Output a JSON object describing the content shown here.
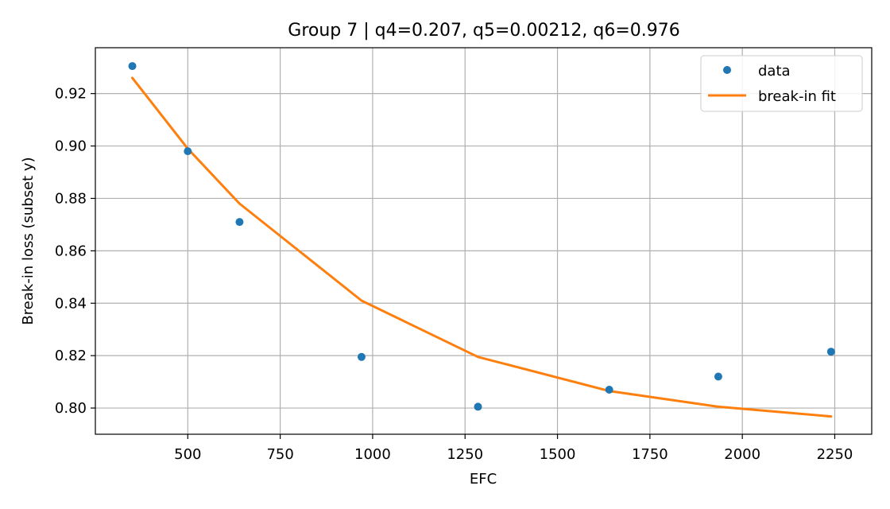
{
  "chart_data": {
    "type": "line",
    "title": "Group 7 | q4=0.207, q5=0.00212, q6=0.976",
    "xlabel": "EFC",
    "ylabel": "Break-in loss (subset y)",
    "xlim": [
      250,
      2350
    ],
    "ylim": [
      0.79,
      0.9375
    ],
    "xticks": [
      500,
      750,
      1000,
      1250,
      1500,
      1750,
      2000,
      2250
    ],
    "yticks": [
      0.8,
      0.82,
      0.84,
      0.86,
      0.88,
      0.9,
      0.92
    ],
    "xtick_labels": [
      "500",
      "750",
      "1000",
      "1250",
      "1500",
      "1750",
      "2000",
      "2250"
    ],
    "ytick_labels": [
      "0.80",
      "0.82",
      "0.84",
      "0.86",
      "0.88",
      "0.90",
      "0.92"
    ],
    "grid": true,
    "legend_position": "top-right",
    "series": [
      {
        "name": "data",
        "kind": "scatter",
        "color": "#1f77b4",
        "x": [
          350,
          500,
          640,
          970,
          1285,
          1640,
          1935,
          2240
        ],
        "y": [
          0.9305,
          0.898,
          0.871,
          0.8195,
          0.8005,
          0.807,
          0.812,
          0.8215
        ]
      },
      {
        "name": "break-in fit",
        "kind": "line",
        "color": "#ff7f0e",
        "x": [
          350,
          500,
          640,
          970,
          1285,
          1640,
          1935,
          2240
        ],
        "y": [
          0.926,
          0.899,
          0.878,
          0.841,
          0.8195,
          0.8065,
          0.8005,
          0.7968
        ]
      }
    ]
  }
}
